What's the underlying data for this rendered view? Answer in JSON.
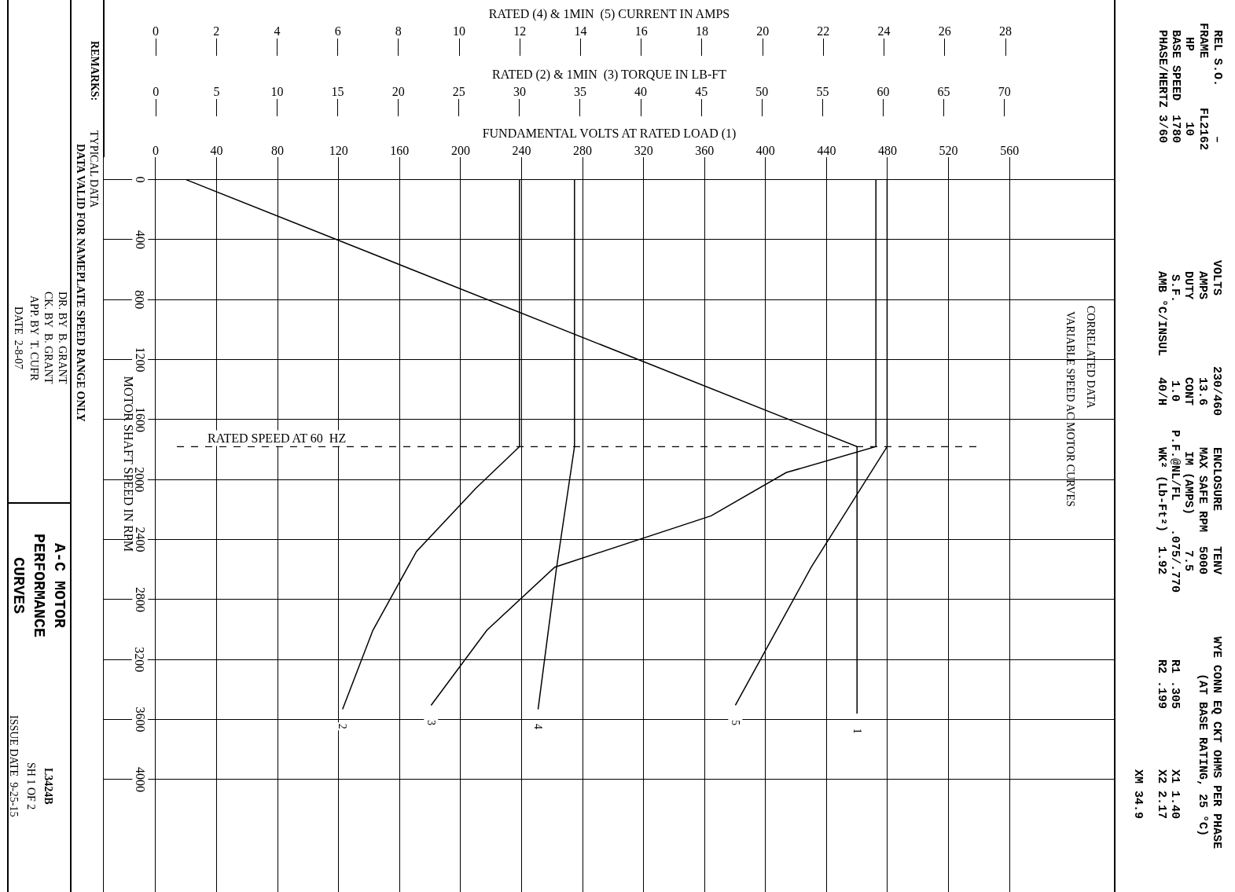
{
  "chart_data": [
    {
      "type": "line",
      "title": "A-C MOTOR PERFORMANCE CURVES",
      "xlabel": "FUNDAMENTAL VOLTS AT RATED LOAD (1)",
      "x2label": "RATED (2) & 1MIN  (3) TORQUE IN LB-FT",
      "ylabel": "MOTOR SHAFT SPEED IN RPM",
      "xlim": [
        -34,
        629
      ],
      "xticks": [
        0,
        40,
        80,
        120,
        160,
        200,
        240,
        280,
        320,
        360,
        400,
        440,
        480,
        520,
        560
      ],
      "x2lim": [
        -4.3,
        79.1
      ],
      "x2ticks": [
        0,
        5,
        10,
        15,
        20,
        25,
        30,
        35,
        40,
        45,
        50,
        55,
        60,
        65,
        70
      ],
      "ylim": [
        4750,
        -150
      ],
      "yticks": [
        0,
        400,
        800,
        1200,
        1600,
        2000,
        2400,
        2800,
        3200,
        3600,
        4000
      ],
      "grid": true,
      "line_style": "solid",
      "series": [
        {
          "name": "1",
          "color": "#000000",
          "x": [
            20,
            460,
            460
          ],
          "values": [
            0,
            1780,
            3560
          ]
        },
        {
          "name": "2",
          "color": "#000000",
          "axis": "x2",
          "x": [
            30,
            30,
            26.4,
            21.5,
            17.9,
            15.4
          ],
          "values": [
            0,
            1780,
            2058,
            2479,
            3005,
            3532
          ]
        },
        {
          "name": "3",
          "color": "#000000",
          "axis": "x2",
          "x": [
            59.4,
            59.4,
            52,
            45.8,
            32.9,
            27.3,
            22.7
          ],
          "values": [
            0,
            1780,
            1953,
            2242,
            2584,
            3005,
            3505
          ]
        }
      ],
      "ref_lines": [
        {
          "axis": "y",
          "value": 1780,
          "label": "RATED SPEED AT 60  HZ",
          "line_style": "dashed",
          "color": "#000000"
        }
      ],
      "annotations": [
        "REMARKS:",
        "TYPICAL DATA",
        "DATA VALID FOR NAMEPLATE SPEED RANGE ONLY",
        "DR. BY  B. GRANT",
        "CK. BY  B. GRANT",
        "APP. BY  T. CUFR",
        "DATE  2-8-07",
        "L3424B",
        "SH 1 OF 2",
        "ISSUE DATE  9-25-15",
        "CORRELATED DATA",
        "VARIABLE SPEED AC MOTOR CURVES",
        "REL S.O.       –",
        "FRAME       FL2162",
        "HP          10",
        "BASE SPEED  1780",
        "PHASE/HERTZ 3/60",
        "VOLTS          230/460",
        "AMPS           13.6",
        "DUTY           CONT",
        "S.F.           1.0",
        "AMB °C/INSUL   40/H",
        "ENCLOSURE     TENV",
        "MAX SAFE RPM  5000",
        "IM (AMPS)     7.5",
        "P.F.@NL/FL    .075/.770",
        "WK² (Lb-Ft²)  1.92",
        "WYE CONN EQ CKT OHMS PER PHASE",
        "(AT BASE RATING, 25 °C)",
        "R1 .305",
        "X1 1.40",
        "R2 .199",
        "X2 2.17",
        "XM 34.9"
      ]
    },
    {
      "type": "line",
      "xlabel": "RATED (4) & 1MIN  (5) CURRENT IN AMPS",
      "xlim": [
        -1.71,
        31.6
      ],
      "xticks": [
        0,
        2,
        4,
        6,
        8,
        10,
        12,
        14,
        16,
        18,
        20,
        22,
        24,
        26,
        28
      ],
      "ylim": [
        4750,
        -150
      ],
      "tick_labels": "x",
      "line_style": "solid",
      "series": [
        {
          "name": "4",
          "color": "#000000",
          "x": [
            13.8,
            13.8,
            13.2,
            12.6
          ],
          "values": [
            0,
            1780,
            2600,
            3532
          ]
        },
        {
          "name": "5",
          "color": "#000000",
          "x": [
            24.1,
            24.1,
            21.6,
            19.1
          ],
          "values": [
            0,
            1780,
            2584,
            3505
          ]
        }
      ]
    }
  ]
}
